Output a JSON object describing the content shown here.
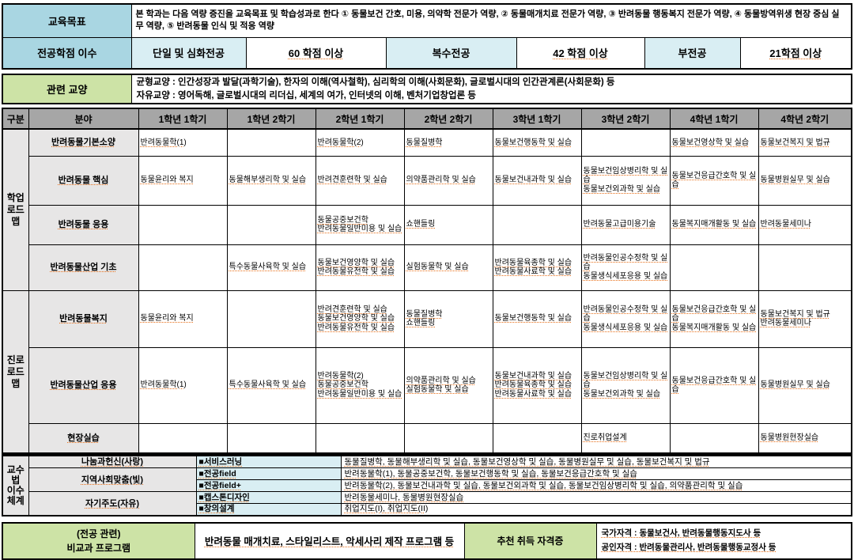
{
  "colors": {
    "header_cyan": "#a9d6e2",
    "light_cyan": "#d9eef3",
    "green": "#cde3a6",
    "gray_header": "#a6a6a6",
    "gray_cell": "#e7e6e6",
    "underline": "#e8701a"
  },
  "top": {
    "goal_label": "교육목표",
    "goal_text": "본 학과는 다음 역량 증진을 교육목표 및 학습성과로 한다 ① 동물보건 간호, 미용, 의약학 전문가 역량, ② 동물매개치료 전문가 역량, ③ 반려동물 행동복지 전문가 역량, ④ 동물방역위생 현장 중심 실무 역량, ⑤ 반려동물 인식 및 적응 역량",
    "credits_label": "전공학점 이수",
    "credits": [
      {
        "type": "단일 및 심화전공",
        "value": "60 학점 이상"
      },
      {
        "type": "복수전공",
        "value": "42 학점 이상"
      },
      {
        "type": "부전공",
        "value": "21학점 이상"
      }
    ],
    "liberal_label": "관련 교양",
    "liberal_line1": "균형교양 : 인간성장과 발달(과학기술), 한자의 이해(역사철학), 심리학의 이해(사회문화), 글로벌시대의 인간관계론(사회문화) 등",
    "liberal_line2": "자유교양 : 영어독해, 글로벌시대의 리더십, 세계의 여가, 인터넷의 이해, 벤처기업창업론 등"
  },
  "curriculum": {
    "headers": [
      "구분",
      "분야",
      "1학년 1학기",
      "1학년 2학기",
      "2학년 1학기",
      "2학년 2학기",
      "3학년 1학기",
      "3학년 2학기",
      "4학년 1학기",
      "4학년 2학기"
    ],
    "sections": [
      {
        "group": [
          "학업",
          "로드맵"
        ],
        "rows": [
          {
            "area": "반려동물기본소양",
            "cells": [
              [
                "반려동물학(1)"
              ],
              [],
              [
                "반려동물학(2)"
              ],
              [
                "동물질병학"
              ],
              [
                "동물보건행동학 및 실습"
              ],
              [],
              [
                "동물보건영상학 및 실습"
              ],
              [
                "동물보건복지 및 법규"
              ]
            ]
          },
          {
            "area": "반려동물 핵심",
            "cells": [
              [
                "동물윤리와 복지"
              ],
              [
                "동물해부생리학 및 실습"
              ],
              [
                "반려견훈련학 및 실습"
              ],
              [
                "의약품관리학 및 실습"
              ],
              [
                "동물보건내과학 및 실습"
              ],
              [
                "동물보건임상병리학 및 실습",
                "동물보건외과학 및 실습"
              ],
              [
                "동물보건응급간호학 및 실습"
              ],
              [
                "동물병원실무 및 실습"
              ]
            ]
          },
          {
            "area": "반려동물 응용",
            "cells": [
              [],
              [],
              [
                "동물공중보건학",
                "반려동물일반미용 및 실습"
              ],
              [
                "쇼핸들링"
              ],
              [],
              [
                "반려동물고급미용기술"
              ],
              [
                "동물복지매개활동 및 실습"
              ],
              [
                "반려동물세미나"
              ]
            ]
          },
          {
            "area": "반려동물산업 기초",
            "cells": [
              [],
              [
                "특수동물사육학 및 실습"
              ],
              [
                "동물보건영양학 및 실습",
                "반려동물유전학 및 실습"
              ],
              [
                "실험동물학 및 실습"
              ],
              [
                "반려동물육종학 및 실습",
                "반려동물사료학 및 실습"
              ],
              [
                "반려동물인공수정학 및 실습",
                "동물생식세포응용 및 실습"
              ],
              [],
              []
            ]
          }
        ]
      },
      {
        "group": [
          "진로",
          "로드맵"
        ],
        "rows": [
          {
            "area": "반려동물복지",
            "cells": [
              [
                "동물윤리와 복지"
              ],
              [],
              [
                "반려견훈련학 및 실습",
                "동물보건영양학 및 실습",
                "반려동물유전학 및 실습"
              ],
              [
                "동물질병학",
                "쇼핸들링"
              ],
              [
                "동물보건행동학 및 실습"
              ],
              [
                "반려동물인공수정학 및 실습",
                "동물생식세포응용 및 실습"
              ],
              [
                "동물보건응급간호학 및 실습",
                "동물복지매개활동 및 실습"
              ],
              [
                "동물보건복지 및 법규",
                "반려동물세미나"
              ]
            ]
          },
          {
            "area": "반려동물산업 응용",
            "cells": [
              [
                "반려동물학(1)"
              ],
              [
                "특수동물사육학 및 실습"
              ],
              [
                "반려동물학(2)",
                "동물공중보건학",
                "반려동물일반미용 및 실습"
              ],
              [
                "의약품관리학 및 실습",
                "실험동물학 및 실습"
              ],
              [
                "동물보건내과학 및 실습",
                "반려동물육종학 및 실습",
                "반려동물사료학 및 실습"
              ],
              [
                "동물보건임상병리학 및 실습",
                "동물보건외과학 및 실습"
              ],
              [
                "동물보건응급간호학 및 실습"
              ],
              [
                "동물병원실무 및 실습"
              ]
            ]
          },
          {
            "area": "현장실습",
            "cells": [
              [],
              [],
              [],
              [],
              [],
              [
                "진로취업설계"
              ],
              [],
              [
                "동물병원현장실습"
              ]
            ]
          }
        ]
      }
    ],
    "pedagogy": {
      "group": [
        "교수법",
        "이수",
        "체계"
      ],
      "rows": [
        {
          "category": "나눔과헌신(사랑)",
          "tracks": [
            {
              "label": "■서비스러닝",
              "courses": "동물질병학, 동물해부생리학 및 실습, 동물보건영상학 및 실습, 동물병원실무 및 실습, 동물보건복지 및 법규"
            }
          ]
        },
        {
          "category": "지역사회맞춤(빛)",
          "tracks": [
            {
              "label": "■전공field",
              "courses": "반려동물학(1), 동물공중보건학, 동물보건행동학 및 실습, 동물보건응급간호학 및 실습"
            },
            {
              "label": "■전공field+",
              "courses": "반려동물학(2), 동물보건내과학 및 실습, 동물보건외과학 및 실습, 동물보건임상병리학 및 실습, 의약품관리학 및 실습"
            }
          ]
        },
        {
          "category": "자기주도(자유)",
          "tracks": [
            {
              "label": "■캡스톤디자인",
              "courses": "반려동물세미나, 동물병원현장실습"
            },
            {
              "label": "■창의설계",
              "courses": "취업지도(I), 취업지도(II)"
            }
          ]
        }
      ]
    }
  },
  "bottom": {
    "program_label_1": "(전공 관련)",
    "program_label_2": "비교과 프로그램",
    "program_text": "반려동물 매개치료, 스타일리스트, 악세사리 제작 프로그램 등",
    "cert_label": "추천 취득 자격증",
    "cert_line1": "국가자격 : 동물보건사, 반려동물행동지도사 등",
    "cert_line2": "공인자격 : 반려동물관리사, 반려동물행동교정사 등"
  }
}
